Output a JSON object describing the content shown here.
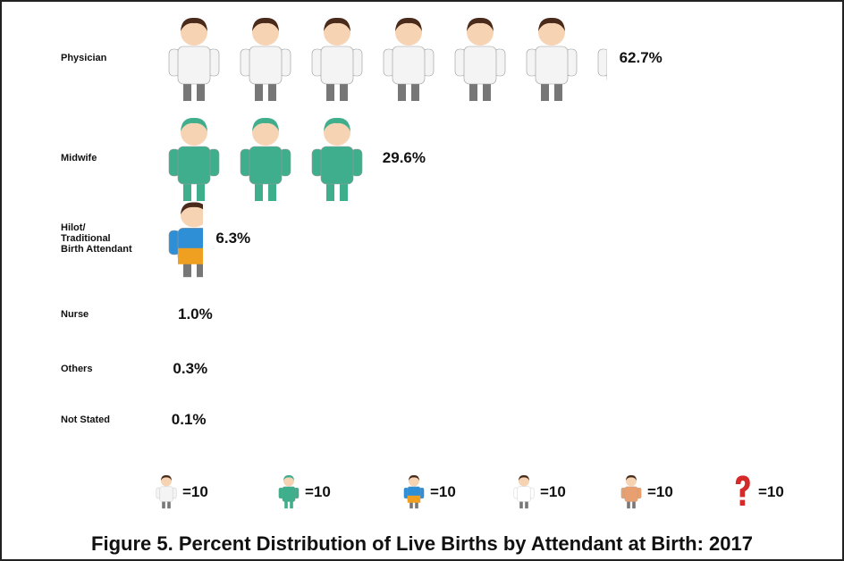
{
  "chart_data": {
    "type": "pictograph",
    "title": "Figure 5. Percent Distribution of Live Births by Attendant at Birth: 2017",
    "categories": [
      "Physician",
      "Midwife",
      "Hilot/ Traditional Birth Attendant",
      "Nurse",
      "Others",
      "Not Stated"
    ],
    "values": [
      62.7,
      29.6,
      6.3,
      1.0,
      0.3,
      0.1
    ],
    "value_labels": [
      "62.7%",
      "29.6%",
      "6.3%",
      "1.0%",
      "0.3%",
      "0.1%"
    ],
    "colors": [
      "#f4f4f4",
      "#3fae8c",
      "#2f8fd6",
      "#ffffff",
      "#e9a070",
      "#d42a2a"
    ],
    "unit": 10,
    "legend_labels": [
      "=10",
      "=10",
      "=10",
      "=10",
      "=10",
      "=10"
    ]
  }
}
